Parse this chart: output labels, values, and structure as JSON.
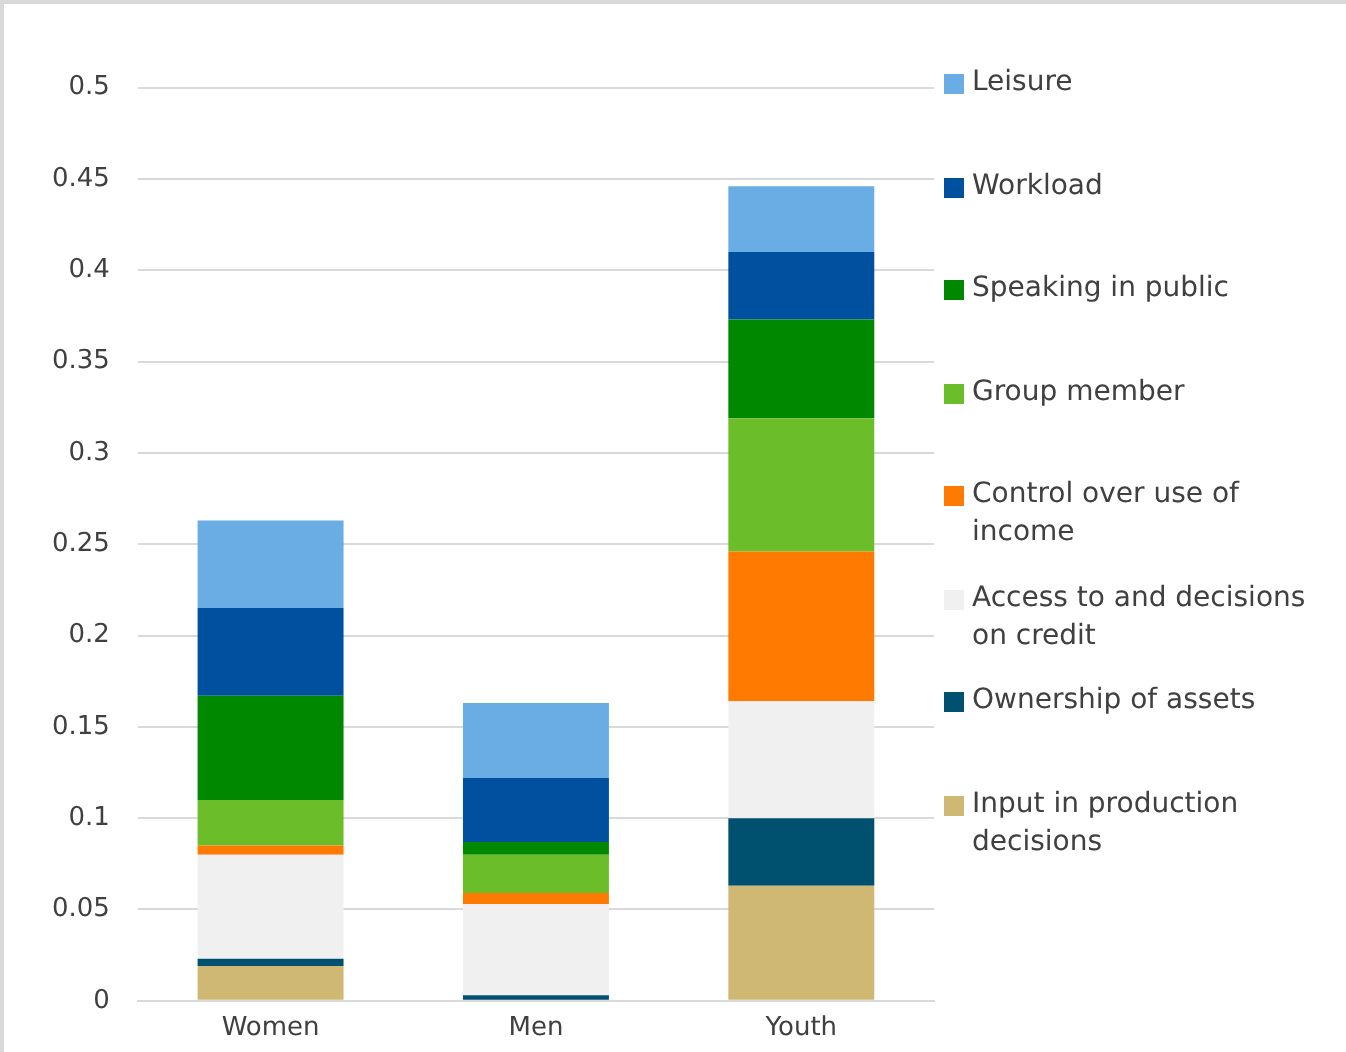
{
  "chart_data": {
    "type": "bar",
    "stacked": true,
    "categories": [
      "Women",
      "Men",
      "Youth"
    ],
    "series": [
      {
        "name": "Input in production decisions",
        "color": "#cfb873",
        "values": [
          0.019,
          0,
          0.063
        ]
      },
      {
        "name": "Ownership of assets",
        "color": "#005070",
        "values": [
          0.004,
          0.003,
          0.037
        ]
      },
      {
        "name": "Access to and decisions on credit",
        "color": "#f0f0f0",
        "values": [
          0.057,
          0.05,
          0.064
        ]
      },
      {
        "name": "Control over use of income",
        "color": "#ff7a00",
        "values": [
          0.005,
          0.006,
          0.082
        ]
      },
      {
        "name": "Group member",
        "color": "#6cbd2a",
        "values": [
          0.025,
          0.021,
          0.073
        ]
      },
      {
        "name": "Speaking in public",
        "color": "#008800",
        "values": [
          0.057,
          0.007,
          0.054
        ]
      },
      {
        "name": "Workload",
        "color": "#0050a0",
        "values": [
          0.048,
          0.035,
          0.037
        ]
      },
      {
        "name": "Leisure",
        "color": "#6aace4",
        "values": [
          0.048,
          0.041,
          0.036
        ]
      }
    ],
    "ylim": [
      0,
      0.5
    ],
    "yticks": [
      0,
      0.05,
      0.1,
      0.15,
      0.2,
      0.25,
      0.3,
      0.35,
      0.4,
      0.45,
      0.5
    ],
    "grid": "y",
    "legend": "right"
  }
}
